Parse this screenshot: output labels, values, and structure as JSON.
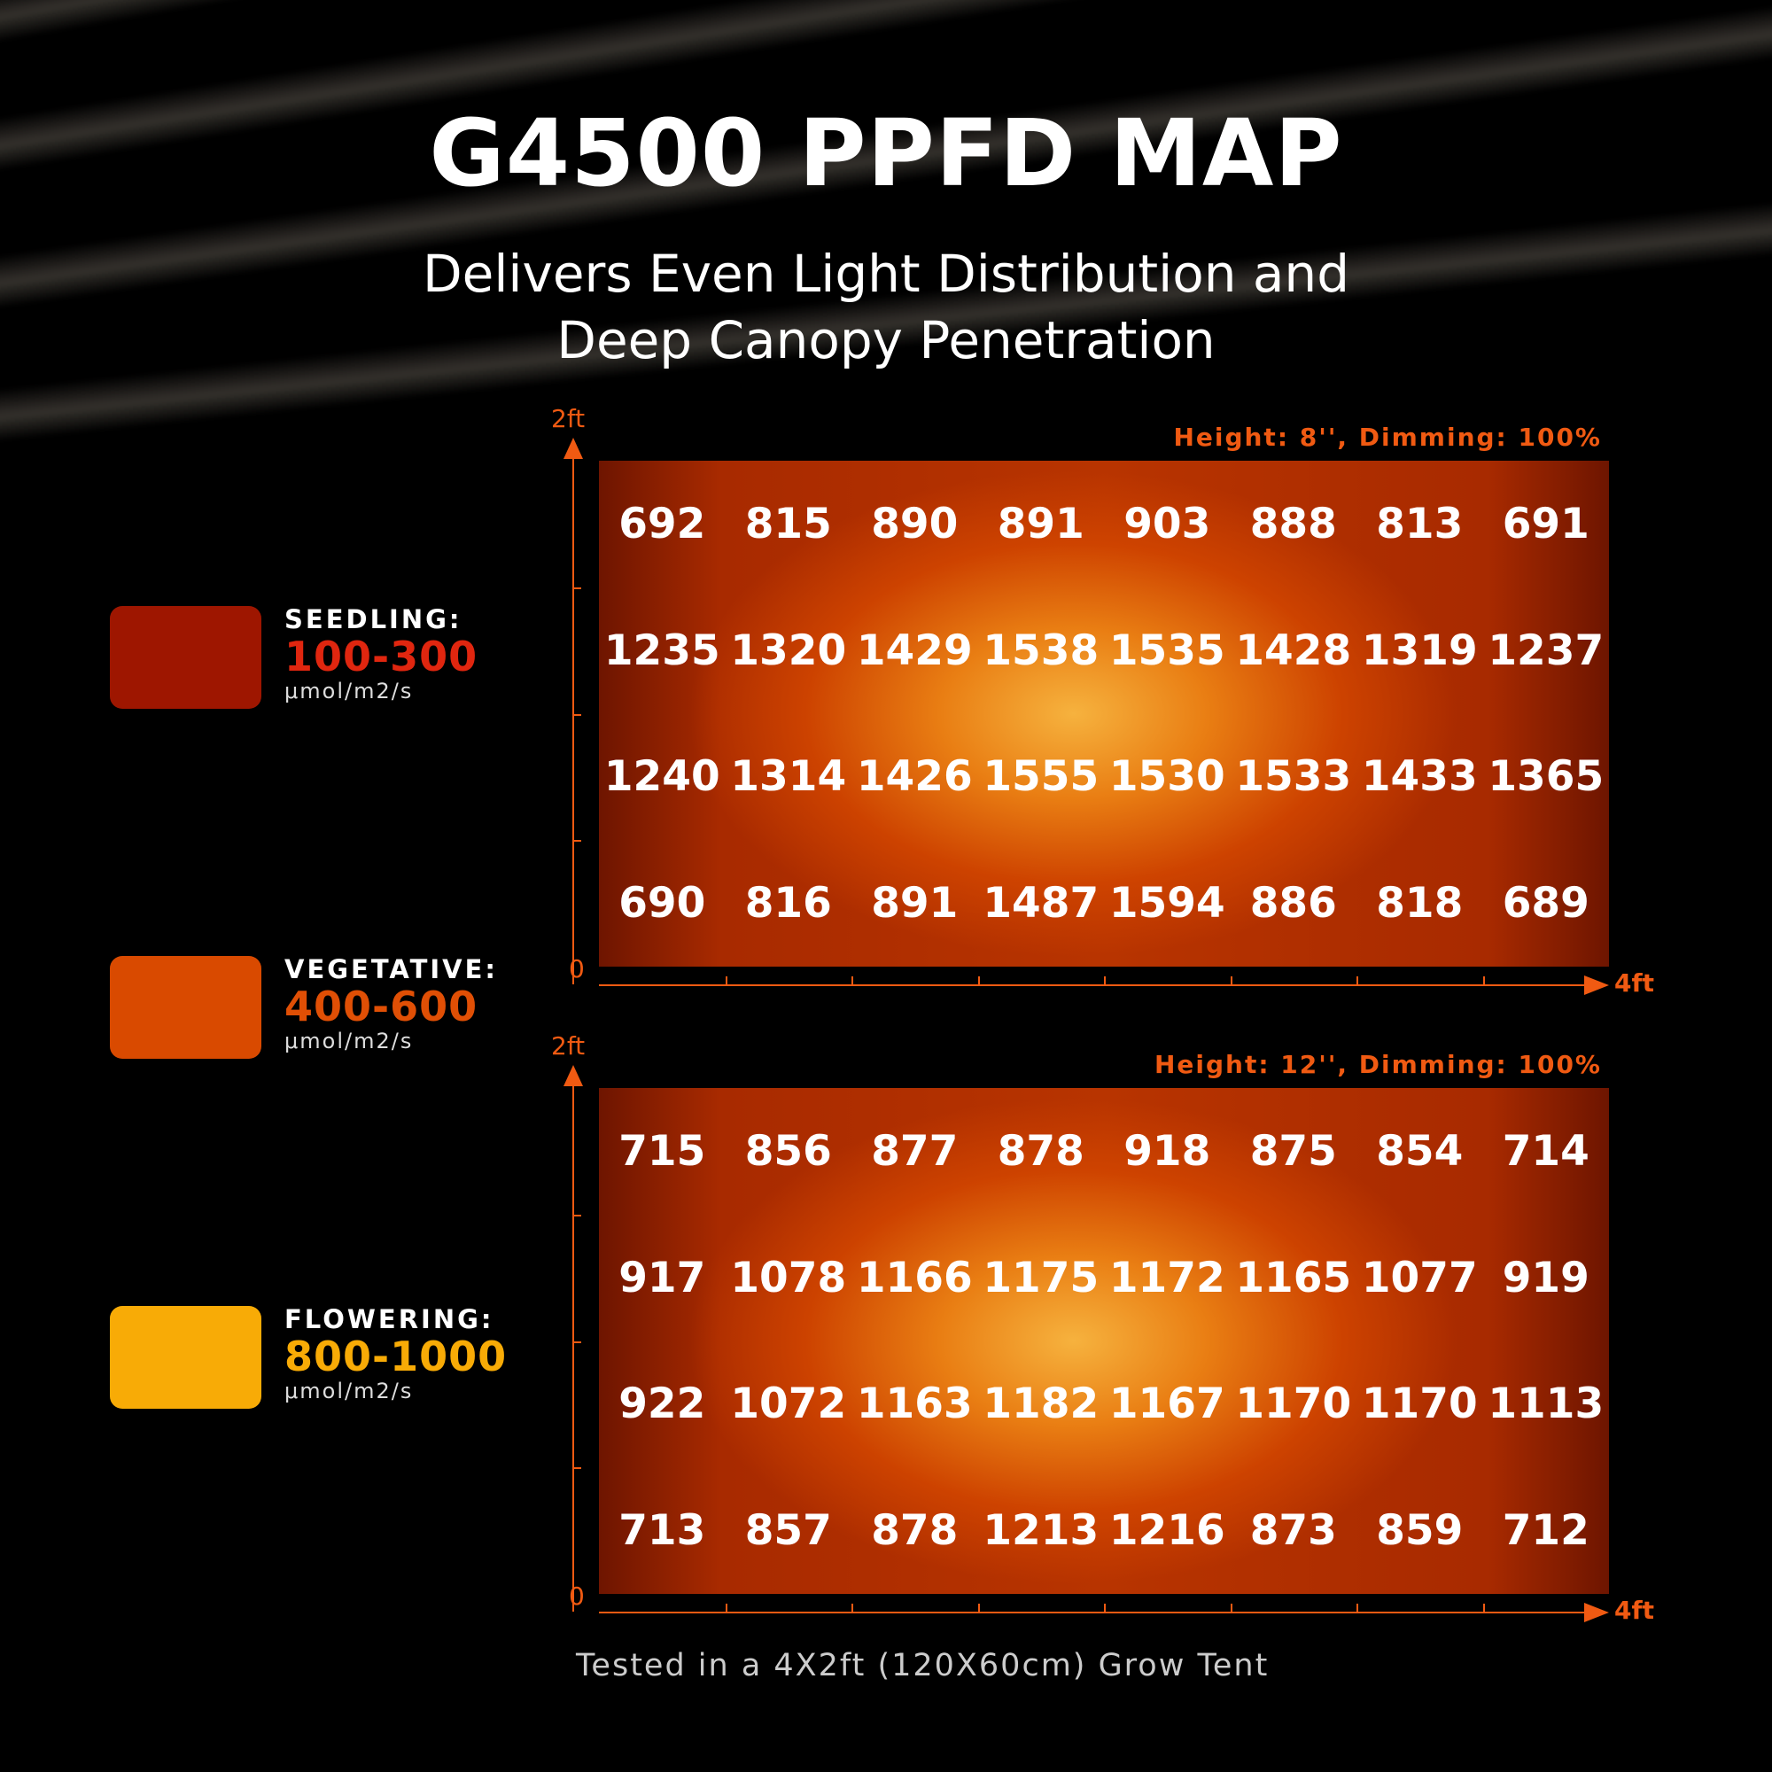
{
  "title": "G4500 PPFD MAP",
  "subtitle_lines": [
    "Delivers Even Light Distribution and",
    "Deep Canopy Penetration"
  ],
  "legend": [
    {
      "name": "SEEDLING:",
      "range": "100-300",
      "unit": "μmol/m2/s",
      "color": "#9e1600",
      "range_color": "#e0260f"
    },
    {
      "name": "VEGETATIVE:",
      "range": "400-600",
      "unit": "μmol/m2/s",
      "color": "#d94a00",
      "range_color": "#e04f05"
    },
    {
      "name": "FLOWERING:",
      "range": "800-1000",
      "unit": "μmol/m2/s",
      "color": "#f8ab06",
      "range_color": "#f8ab06"
    }
  ],
  "footer": "Tested in a 4X2ft (120X60cm) Grow Tent",
  "colors": {
    "accent": "#f05a12"
  },
  "chart_data": [
    {
      "type": "heatmap",
      "title": "Height: 8'', Dimming: 100%",
      "x_axis": {
        "start_label": "0",
        "end_label": "4ft"
      },
      "y_axis": {
        "start_label": "0",
        "end_label": "2ft"
      },
      "values": [
        [
          692,
          815,
          890,
          891,
          903,
          888,
          813,
          691
        ],
        [
          1235,
          1320,
          1429,
          1538,
          1535,
          1428,
          1319,
          1237
        ],
        [
          1240,
          1314,
          1426,
          1555,
          1530,
          1533,
          1433,
          1365
        ],
        [
          690,
          816,
          891,
          1487,
          1594,
          886,
          818,
          689
        ]
      ]
    },
    {
      "type": "heatmap",
      "title": "Height: 12'', Dimming: 100%",
      "x_axis": {
        "start_label": "0",
        "end_label": "4ft"
      },
      "y_axis": {
        "start_label": "0",
        "end_label": "2ft"
      },
      "values": [
        [
          715,
          856,
          877,
          878,
          918,
          875,
          854,
          714
        ],
        [
          917,
          1078,
          1166,
          1175,
          1172,
          1165,
          1077,
          919
        ],
        [
          922,
          1072,
          1163,
          1182,
          1167,
          1170,
          1170,
          1113
        ],
        [
          713,
          857,
          878,
          1213,
          1216,
          873,
          859,
          712
        ]
      ]
    }
  ]
}
